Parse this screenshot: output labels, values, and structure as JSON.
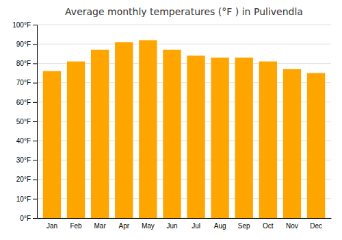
{
  "chart_data": {
    "type": "bar",
    "title": "Average monthly temperatures (°F ) in Pulivendla",
    "categories": [
      "Jan",
      "Feb",
      "Mar",
      "Apr",
      "May",
      "Jun",
      "Jul",
      "Aug",
      "Sep",
      "Oct",
      "Nov",
      "Dec"
    ],
    "values": [
      76,
      81,
      87,
      91,
      92,
      87,
      84,
      83,
      83,
      81,
      77,
      75
    ],
    "color": "#FFA500",
    "ylim": [
      0,
      100
    ],
    "yticks": [
      {
        "value": 0,
        "label": "0°F"
      },
      {
        "value": 10,
        "label": "10°F"
      },
      {
        "value": 20,
        "label": "20°F"
      },
      {
        "value": 30,
        "label": "30°F"
      },
      {
        "value": 40,
        "label": "40°F"
      },
      {
        "value": 50,
        "label": "50°F"
      },
      {
        "value": 60,
        "label": "60°F"
      },
      {
        "value": 70,
        "label": "70°F"
      },
      {
        "value": 80,
        "label": "80°F"
      },
      {
        "value": 90,
        "label": "90°F"
      },
      {
        "value": 100,
        "label": "100°F"
      }
    ],
    "grid": true
  }
}
